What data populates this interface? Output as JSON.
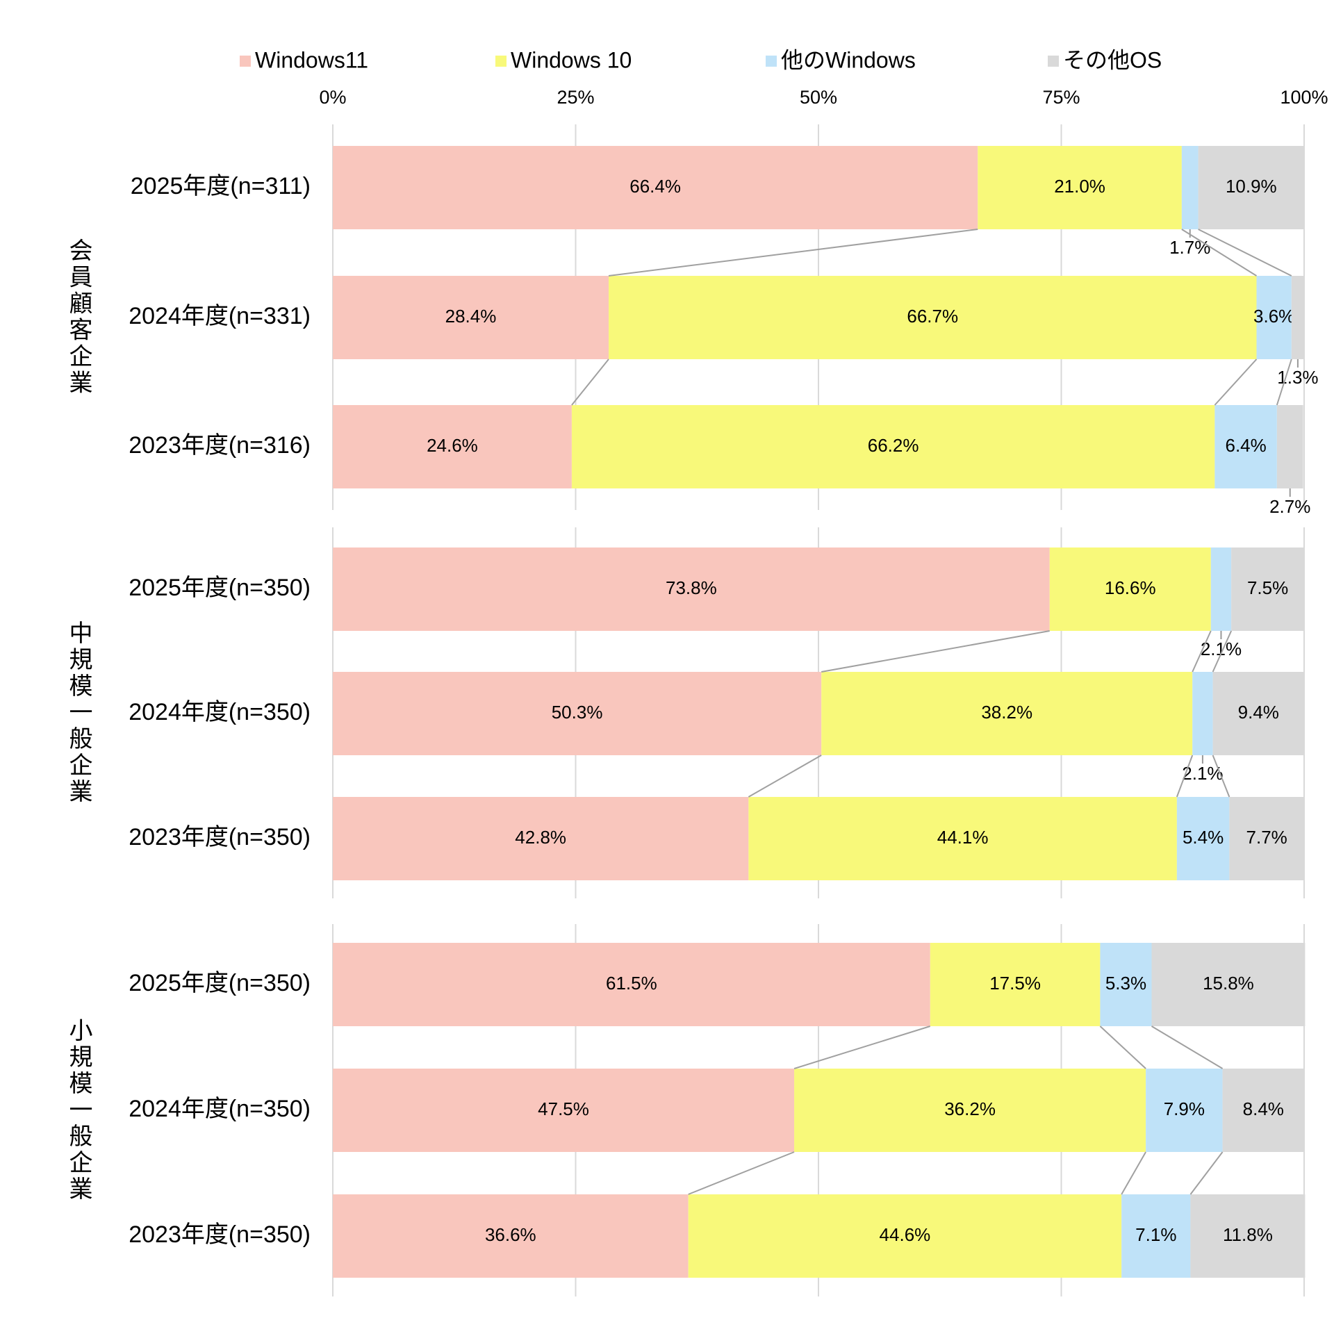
{
  "chart_data": {
    "type": "bar",
    "orientation": "horizontal",
    "stacked": true,
    "groups": [
      "会員顧客企業",
      "中規模一般企業",
      "小規模一般企業"
    ],
    "categories": [
      "2025年度(n=311)",
      "2024年度(n=331)",
      "2023年度(n=316)",
      "2025年度(n=350)",
      "2024年度(n=350)",
      "2023年度(n=350)",
      "2025年度(n=350)",
      "2024年度(n=350)",
      "2023年度(n=350)"
    ],
    "series": [
      {
        "name": "Windows11",
        "color": "#f9c6bd",
        "values": [
          66.4,
          28.4,
          24.6,
          73.8,
          50.3,
          42.8,
          61.5,
          47.5,
          36.6
        ],
        "value_labels": [
          "66.4%",
          "28.4%",
          "24.6%",
          "73.8%",
          "50.3%",
          "42.8%",
          "61.5%",
          "47.5%",
          "36.6%"
        ]
      },
      {
        "name": "Windows 10",
        "color": "#f8f97a",
        "values": [
          21.0,
          66.7,
          66.2,
          16.6,
          38.2,
          44.1,
          17.5,
          36.2,
          44.6
        ],
        "value_labels": [
          "21.0%",
          "66.7%",
          "66.2%",
          "16.6%",
          "38.2%",
          "44.1%",
          "17.5%",
          "36.2%",
          "44.6%"
        ]
      },
      {
        "name": "他のWindows",
        "color": "#bfe2f8",
        "values": [
          1.7,
          3.6,
          6.4,
          2.1,
          2.1,
          5.4,
          5.3,
          7.9,
          7.1
        ],
        "value_labels": [
          "1.7%",
          "3.6%",
          "6.4%",
          "2.1%",
          "2.1%",
          "5.4%",
          "5.3%",
          "7.9%",
          "7.1%"
        ]
      },
      {
        "name": "その他OS",
        "color": "#d9d9d9",
        "values": [
          10.9,
          1.3,
          2.7,
          7.5,
          9.4,
          7.7,
          15.8,
          8.4,
          11.8
        ],
        "value_labels": [
          "10.9%",
          "1.3%",
          "2.7%",
          "7.5%",
          "9.4%",
          "7.7%",
          "15.8%",
          "8.4%",
          "11.8%"
        ]
      }
    ],
    "xlim": [
      0,
      100
    ],
    "xticks": [
      {
        "value": 0,
        "label": "0%"
      },
      {
        "value": 25,
        "label": "25%"
      },
      {
        "value": 50,
        "label": "50%"
      },
      {
        "value": 75,
        "label": "75%"
      },
      {
        "value": 100,
        "label": "100%"
      }
    ],
    "grid": true,
    "legend": "top"
  }
}
